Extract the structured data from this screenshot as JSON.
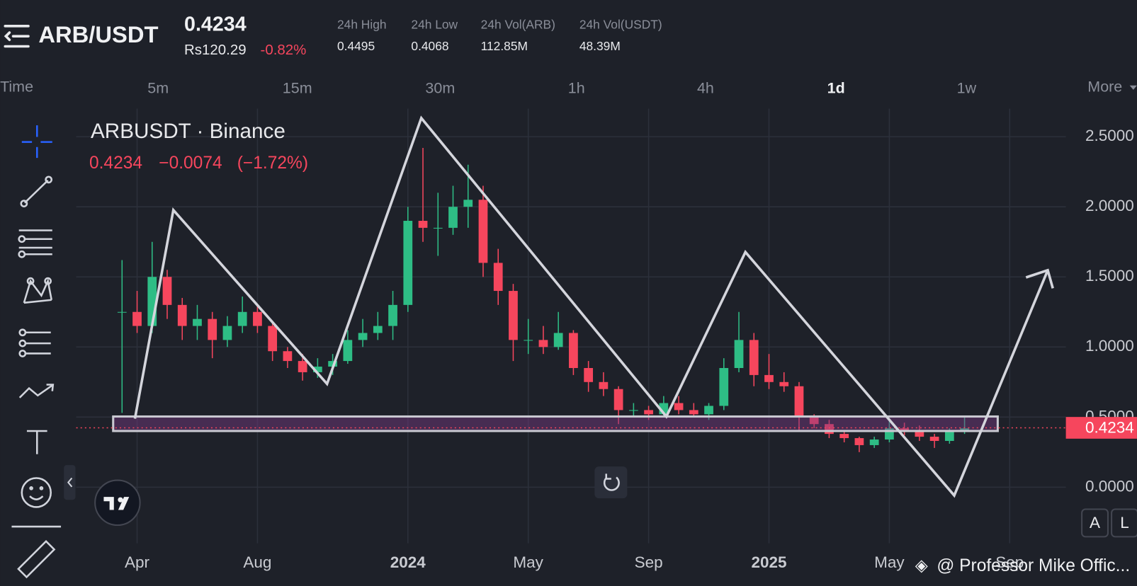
{
  "header": {
    "pair": "ARB/USDT",
    "price": "0.4234",
    "fiat_price": "Rs120.29",
    "change": "-0.82%",
    "stats": [
      {
        "label": "24h High",
        "value": "0.4495"
      },
      {
        "label": "24h Low",
        "value": "0.4068"
      },
      {
        "label": "24h Vol(ARB)",
        "value": "112.85M"
      },
      {
        "label": "24h Vol(USDT)",
        "value": "48.39M"
      }
    ]
  },
  "timeframes": {
    "label": "Time",
    "options": [
      "5m",
      "15m",
      "30m",
      "1h",
      "4h",
      "1d",
      "1w"
    ],
    "selected": "1d",
    "more": "More"
  },
  "chart_data": {
    "type": "candlestick",
    "title": "ARBUSDT · Binance",
    "legend_values": {
      "close": "0.4234",
      "change": "−0.0074",
      "change_pct": "(−1.72%)"
    },
    "categories": [
      null,
      "Apr",
      null,
      null,
      null,
      null,
      null,
      null,
      null,
      "Aug",
      null,
      null,
      null,
      null,
      null,
      null,
      null,
      null,
      null,
      "2024",
      null,
      null,
      null,
      null,
      null,
      null,
      null,
      "May",
      null,
      null,
      null,
      null,
      null,
      null,
      null,
      "Sep",
      null,
      null,
      null,
      null,
      null,
      null,
      null,
      "2025",
      null,
      null,
      null,
      null,
      null,
      null,
      null,
      "May",
      null,
      null,
      null,
      null,
      null,
      null,
      null,
      "Sep"
    ],
    "open": [
      1.25,
      1.25,
      1.15,
      1.5,
      1.3,
      1.15,
      1.2,
      1.05,
      1.15,
      1.25,
      1.15,
      0.97,
      0.9,
      0.82,
      0.86,
      0.9,
      1.05,
      1.1,
      1.15,
      1.3,
      1.9,
      1.85,
      1.85,
      2.0,
      2.05,
      1.6,
      1.4,
      1.05,
      1.05,
      1.0,
      1.1,
      0.85,
      0.75,
      0.7,
      0.55,
      0.55,
      0.52,
      0.6,
      0.55,
      0.52,
      0.58,
      0.85,
      1.05,
      0.8,
      0.75,
      0.72,
      0.5,
      0.45,
      0.38,
      0.35,
      0.3,
      0.34,
      0.42,
      0.4,
      0.36,
      0.33,
      0.4,
      null,
      null,
      null
    ],
    "high": [
      1.62,
      1.4,
      1.75,
      1.55,
      1.35,
      1.3,
      1.25,
      1.22,
      1.36,
      1.3,
      1.18,
      1.0,
      0.95,
      0.92,
      0.95,
      1.12,
      1.2,
      1.25,
      1.4,
      2.0,
      2.42,
      2.1,
      2.15,
      2.3,
      2.15,
      1.7,
      1.45,
      1.2,
      1.15,
      1.25,
      1.12,
      0.9,
      0.82,
      0.72,
      0.6,
      0.58,
      0.65,
      0.65,
      0.6,
      0.6,
      0.92,
      1.25,
      1.1,
      0.95,
      0.82,
      0.75,
      0.52,
      0.48,
      0.4,
      0.36,
      0.36,
      0.48,
      0.46,
      0.44,
      0.38,
      0.42,
      0.5,
      null,
      null,
      null
    ],
    "low": [
      0.53,
      1.1,
      1.1,
      1.2,
      1.05,
      1.05,
      0.92,
      1.0,
      1.1,
      1.1,
      0.9,
      0.85,
      0.76,
      0.78,
      0.8,
      0.88,
      1.0,
      1.05,
      1.05,
      1.25,
      1.75,
      1.65,
      1.8,
      1.85,
      1.5,
      1.3,
      0.9,
      0.95,
      0.95,
      0.98,
      0.8,
      0.68,
      0.65,
      0.45,
      0.5,
      0.48,
      0.5,
      0.52,
      0.5,
      0.48,
      0.55,
      0.82,
      0.72,
      0.7,
      0.68,
      0.4,
      0.42,
      0.35,
      0.32,
      0.25,
      0.28,
      0.32,
      0.37,
      0.33,
      0.28,
      0.31,
      0.38,
      null,
      null,
      null
    ],
    "close": [
      1.25,
      1.15,
      1.5,
      1.3,
      1.15,
      1.2,
      1.05,
      1.15,
      1.25,
      1.15,
      0.97,
      0.9,
      0.82,
      0.86,
      0.9,
      1.05,
      1.1,
      1.15,
      1.3,
      1.9,
      1.85,
      1.85,
      2.0,
      2.05,
      1.6,
      1.4,
      1.05,
      1.05,
      1.0,
      1.1,
      0.85,
      0.75,
      0.7,
      0.55,
      0.55,
      0.52,
      0.6,
      0.55,
      0.52,
      0.58,
      0.85,
      1.05,
      0.8,
      0.75,
      0.72,
      0.5,
      0.45,
      0.38,
      0.35,
      0.3,
      0.34,
      0.42,
      0.4,
      0.36,
      0.33,
      0.4,
      0.42,
      null,
      null,
      null
    ],
    "up_color": "#2ebd85",
    "down_color": "#f6465d",
    "ylim": [
      -0.4,
      2.7
    ],
    "yticks": [
      {
        "value": 0,
        "label": "0.0000"
      },
      {
        "value": 0.5,
        "label": "0.5000"
      },
      {
        "value": 1,
        "label": "1.0000"
      },
      {
        "value": 1.5,
        "label": "1.5000"
      },
      {
        "value": 2,
        "label": "2.0000"
      },
      {
        "value": 2.5,
        "label": "2.5000"
      }
    ],
    "last_price": 0.4234,
    "grid": true
  },
  "watermark": "@ Professor Mike Offic...",
  "buttons": [
    "A",
    "L"
  ]
}
